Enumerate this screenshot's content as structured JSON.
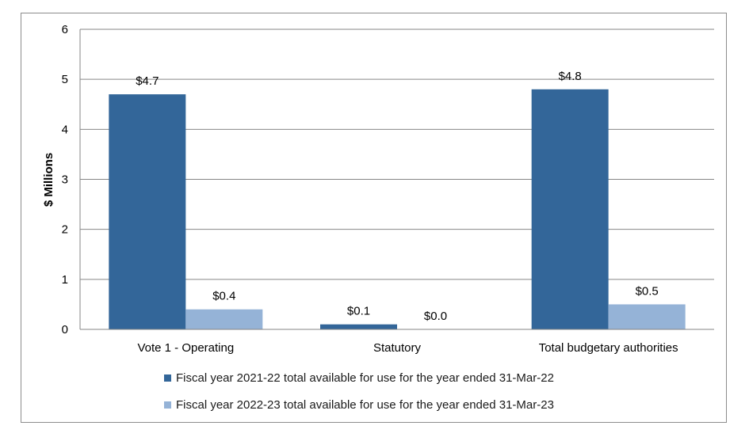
{
  "chart_data": {
    "type": "bar",
    "categories": [
      "Vote 1 - Operating",
      "Statutory",
      "Total budgetary authorities"
    ],
    "series": [
      {
        "name": "Fiscal year 2021-22 total available for use for the year ended 31-Mar-22",
        "values": [
          4.7,
          0.1,
          4.8
        ],
        "labels": [
          "$4.7",
          "$0.1",
          "$4.8"
        ],
        "color": "#336699"
      },
      {
        "name": "Fiscal year 2022-23 total available for use for the year ended 31-Mar-23",
        "values": [
          0.4,
          0.0,
          0.5
        ],
        "labels": [
          "$0.4",
          "$0.0",
          "$0.5"
        ],
        "color": "#95B3D7"
      }
    ],
    "ylabel": "$ Millions",
    "ylim": [
      0,
      6
    ],
    "yticks": [
      0,
      1,
      2,
      3,
      4,
      5,
      6
    ],
    "grid": true,
    "legend": "bottom"
  }
}
